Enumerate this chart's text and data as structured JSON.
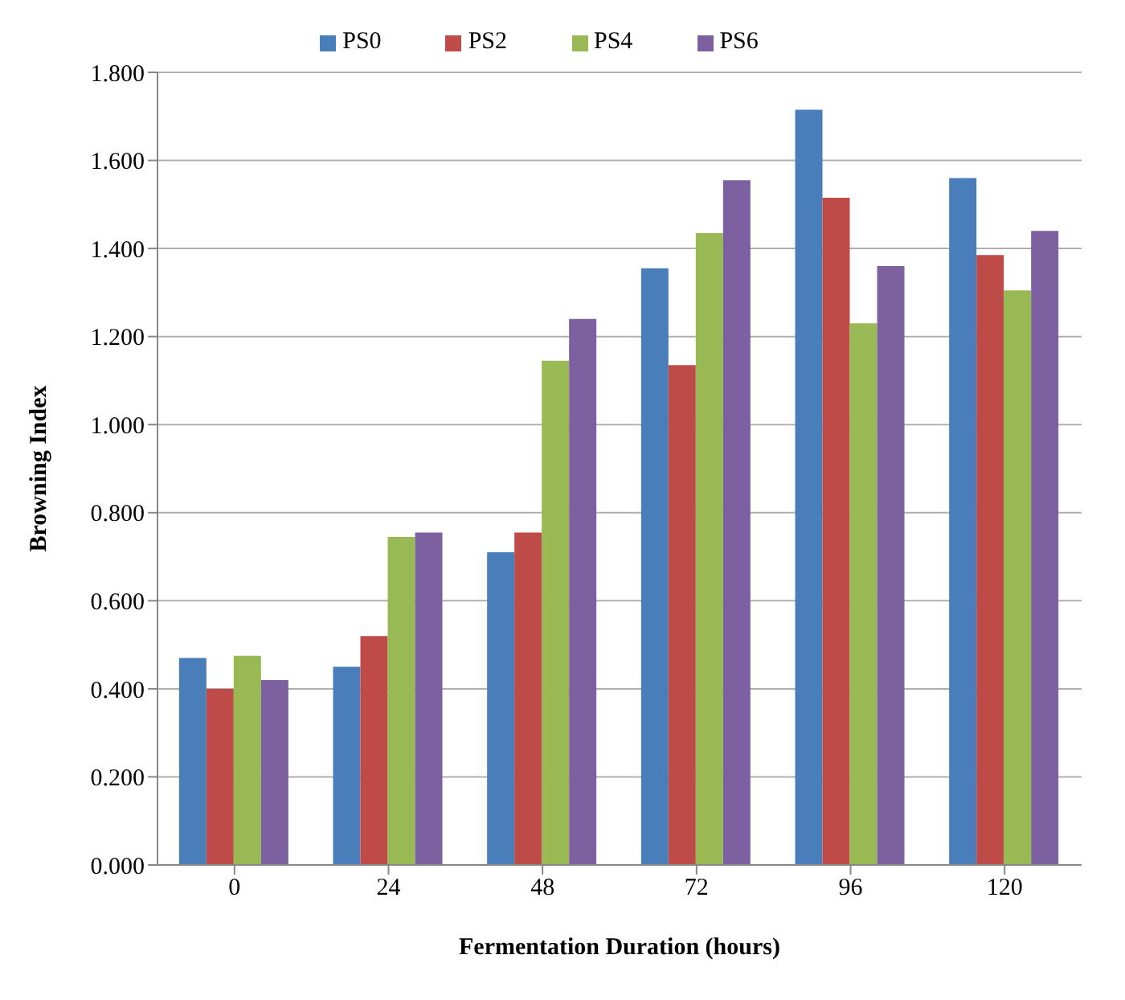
{
  "chart_data": {
    "type": "bar",
    "xlabel": "Fermentation Duration (hours)",
    "ylabel": "Browning Index",
    "categories": [
      "0",
      "24",
      "48",
      "72",
      "96",
      "120"
    ],
    "series": [
      {
        "name": "PS0",
        "color": "#4a7ebb",
        "values": [
          0.47,
          0.45,
          0.71,
          1.355,
          1.715,
          1.56
        ]
      },
      {
        "name": "PS2",
        "color": "#be4b48",
        "values": [
          0.4,
          0.52,
          0.755,
          1.135,
          1.515,
          1.385
        ]
      },
      {
        "name": "PS4",
        "color": "#98b954",
        "values": [
          0.475,
          0.745,
          1.145,
          1.435,
          1.23,
          1.305
        ]
      },
      {
        "name": "PS6",
        "color": "#7d60a0",
        "values": [
          0.42,
          0.755,
          1.24,
          1.555,
          1.36,
          1.44
        ]
      }
    ],
    "ylim": [
      0,
      1.8
    ],
    "yticks": [
      {
        "value": 0,
        "label": "0.000"
      },
      {
        "value": 0.2,
        "label": "0.200"
      },
      {
        "value": 0.4,
        "label": "0.400"
      },
      {
        "value": 0.6,
        "label": "0.600"
      },
      {
        "value": 0.8,
        "label": "0.800"
      },
      {
        "value": 1,
        "label": "1.000"
      },
      {
        "value": 1.2,
        "label": "1.200"
      },
      {
        "value": 1.4,
        "label": "1.400"
      },
      {
        "value": 1.6,
        "label": "1.600"
      },
      {
        "value": 1.8,
        "label": "1.800"
      }
    ],
    "grid": "y",
    "legend": "top"
  }
}
